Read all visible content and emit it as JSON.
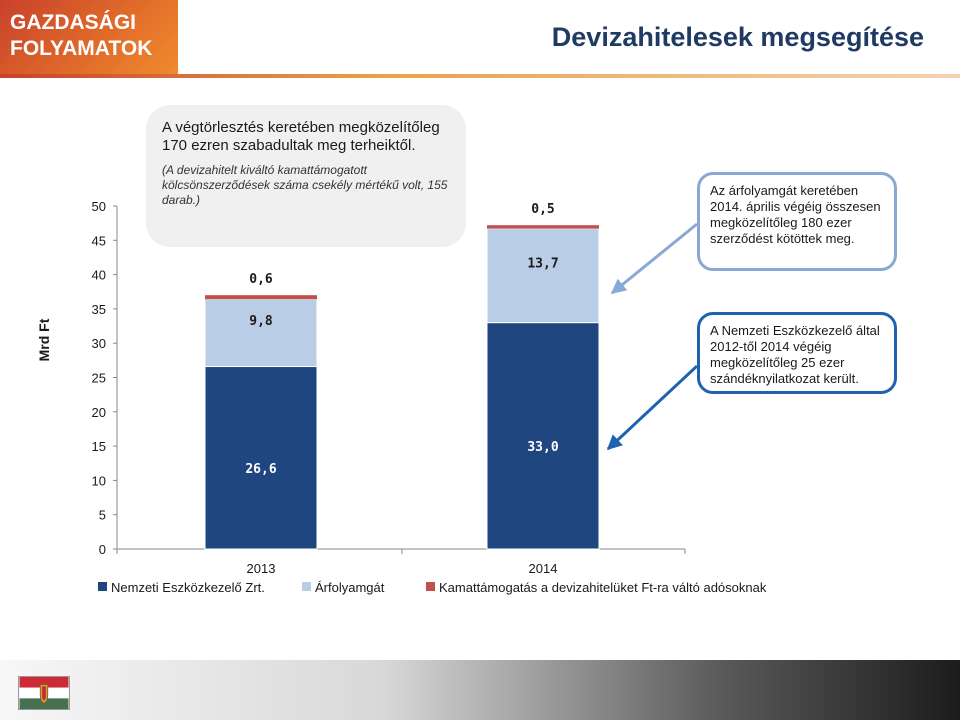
{
  "header": {
    "brand": "GAZDASÁGI\nFOLYAMATOK",
    "title": "Devizahitelesek megsegítése"
  },
  "colors": {
    "nek": "#1f467f",
    "arfolyamgat": "#b9cde6",
    "kamattamogatas": "#c0504d",
    "brand_orange": "#e06a2a",
    "title_navy": "#1f3a63",
    "callout_light_border": "#8aa8d4",
    "callout_dark_border": "#1f63b0"
  },
  "callouts": {
    "top_main": "A végtörlesztés keretében megközelítőleg 170 ezren szabadultak meg terheiktől.",
    "top_note": "(A devizahitelt kiváltó kamattámogatott kölcsönszerződések száma csekély mértékű volt, 155 darab.)",
    "right_upper": "Az árfolyamgát keretében 2014. április végéig összesen megközelítőleg 180 ezer szerződést kötöttek meg.",
    "right_lower": "A Nemzeti Eszközkezelő által 2012-től 2014 végéig megközelítőleg 25 ezer szándéknyilatkozat került."
  },
  "flag_icon": "hungarian-flag-icon",
  "chart_data": {
    "type": "bar",
    "stacked": true,
    "categories": [
      "2013",
      "2014"
    ],
    "series": [
      {
        "name": "Nemzeti Eszközkezelő Zrt.",
        "color": "#1f467f",
        "values": [
          26.6,
          33.0
        ],
        "labels": [
          "26,6",
          "33,0"
        ]
      },
      {
        "name": "Árfolyamgát",
        "color": "#b9cde6",
        "values": [
          9.8,
          13.7
        ],
        "labels": [
          "9,8",
          "13,7"
        ]
      },
      {
        "name": "Kamattámogatás a devizahitelüket Ft-ra váltó adósoknak",
        "color": "#c0504d",
        "values": [
          0.6,
          0.5
        ],
        "labels": [
          "0,6",
          "0,5"
        ]
      }
    ],
    "ylabel": "Mrd Ft",
    "ylim": [
      0,
      50
    ],
    "yticks": [
      "0",
      "5",
      "10",
      "15",
      "20",
      "25",
      "30",
      "35",
      "40",
      "45",
      "50"
    ],
    "legend": "bottom"
  }
}
